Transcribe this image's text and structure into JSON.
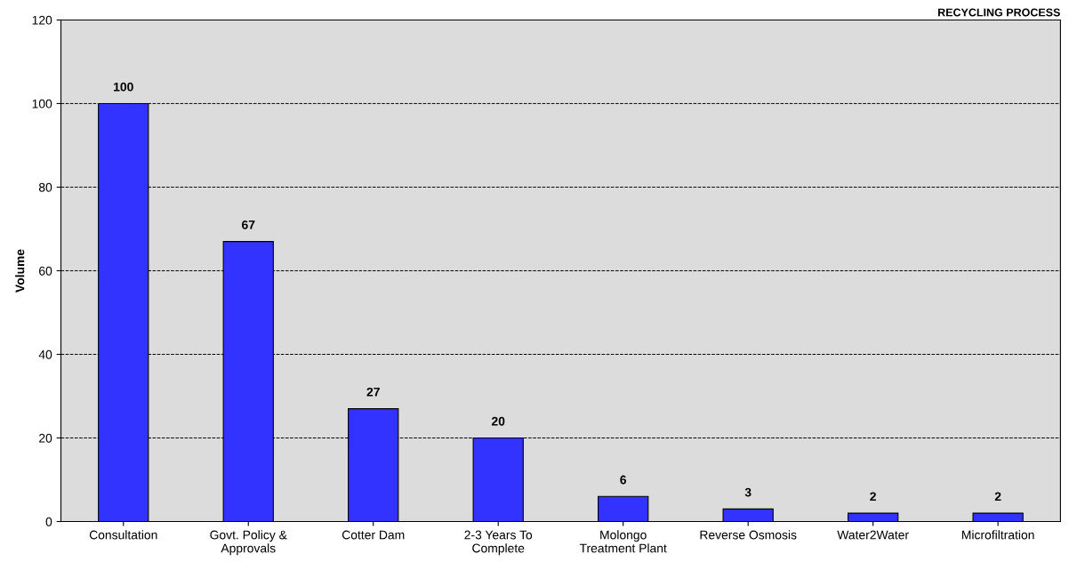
{
  "chart_data": {
    "type": "bar",
    "title": "RECYCLING PROCESS",
    "ylabel": "Volume",
    "categories": [
      "Consultation",
      "Govt. Policy &\nApprovals",
      "Cotter Dam",
      "2-3 Years To\nComplete",
      "Molongo\nTreatment Plant",
      "Reverse Osmosis",
      "Water2Water",
      "Microfiltration"
    ],
    "values": [
      100,
      67,
      27,
      20,
      6,
      3,
      2,
      2
    ],
    "color": "#3333ff",
    "ylim": [
      0,
      120
    ],
    "yticks": [
      0,
      20,
      40,
      60,
      80,
      100,
      120
    ],
    "grid": "y",
    "data_labels": true
  }
}
